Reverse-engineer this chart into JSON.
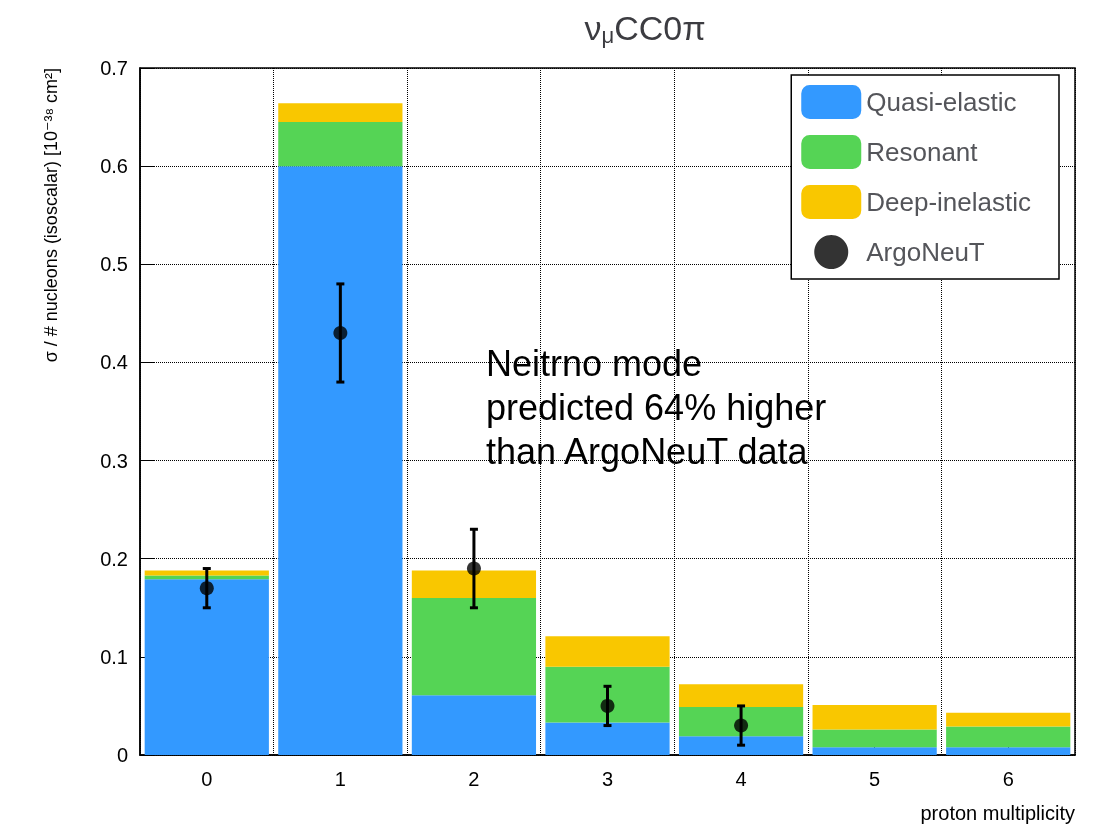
{
  "chart_data": {
    "type": "bar",
    "title": "ν$_{μ}$CC0π",
    "xlabel": "proton multiplicity",
    "ylabel": "σ / # nucleons (isoscalar) [10⁻³⁸ cm²]",
    "categories": [
      "0",
      "1",
      "2",
      "3",
      "4",
      "5",
      "6"
    ],
    "stacked": true,
    "series": [
      {
        "name": "Quasi-elastic",
        "color": "#3399ff",
        "values": [
          0.179,
          0.6,
          0.061,
          0.033,
          0.019,
          0.008,
          0.008
        ]
      },
      {
        "name": "Resonant",
        "color": "#55d455",
        "values": [
          0.004,
          0.045,
          0.099,
          0.057,
          0.03,
          0.018,
          0.021
        ]
      },
      {
        "name": "Deep-inelastic",
        "color": "#f9c700",
        "values": [
          0.005,
          0.019,
          0.028,
          0.031,
          0.023,
          0.025,
          0.014
        ]
      },
      {
        "name": "ArgoNeuT",
        "type": "scatter",
        "color": "#000000",
        "x": [
          "0",
          "1",
          "2",
          "3",
          "4"
        ],
        "values": [
          0.17,
          0.43,
          0.19,
          0.05,
          0.03
        ],
        "errors": [
          0.02,
          0.05,
          0.04,
          0.02,
          0.02
        ]
      }
    ],
    "ylim": [
      0,
      0.7
    ],
    "yticks": [
      0,
      0.1,
      0.2,
      0.3,
      0.4,
      0.5,
      0.6,
      0.7
    ],
    "grid": true,
    "legend": "top right",
    "marker": "circle",
    "annotations": [
      "Neitrno mode",
      "predicted 64% higher",
      "than ArgoNeuT data"
    ]
  }
}
